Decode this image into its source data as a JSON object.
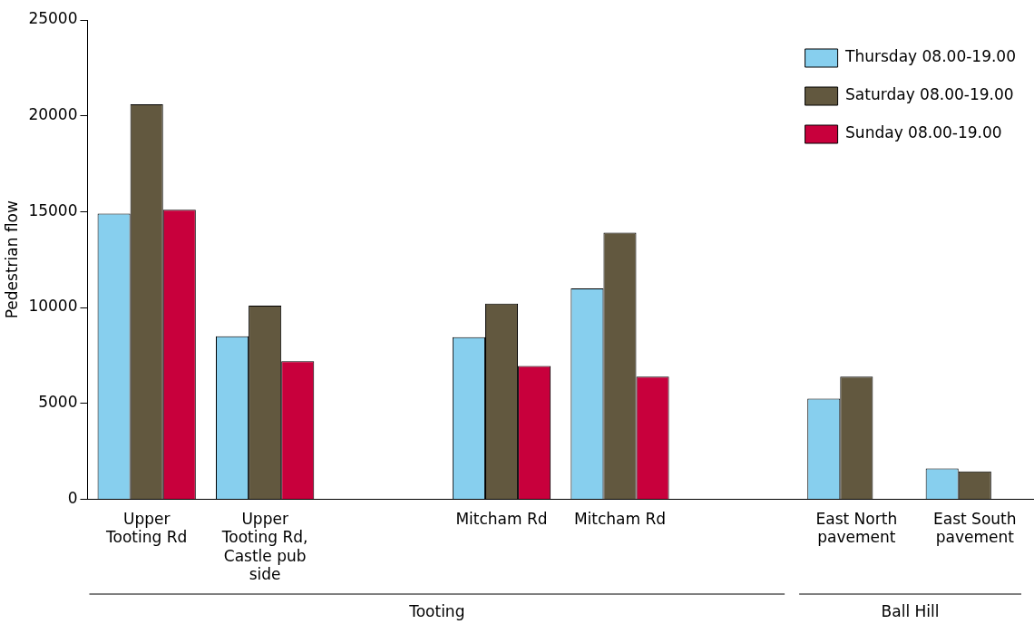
{
  "chart_data": {
    "type": "bar",
    "ylabel": "Pedestrian flow",
    "categories": [
      "Upper Tooting Rd",
      "Upper Tooting Rd, Castle pub side",
      null,
      "Mitcham Rd",
      "Mitcham Rd",
      null,
      "East North pavement",
      "East South pavement"
    ],
    "series": [
      {
        "name": "Thursday 08.00-19.00",
        "color": "#87cfee",
        "values": [
          14900,
          8500,
          null,
          8450,
          11000,
          null,
          5250,
          1600
        ]
      },
      {
        "name": "Saturday 08.00-19.00",
        "color": "#62583f",
        "values": [
          20600,
          10100,
          null,
          10200,
          13900,
          null,
          6400,
          1450
        ]
      },
      {
        "name": "Sunday 08.00-19.00",
        "color": "#c8003c",
        "values": [
          15100,
          7200,
          null,
          6950,
          6400,
          null,
          null,
          null
        ]
      }
    ],
    "ylim": [
      0,
      25000
    ],
    "yticks": [
      0,
      5000,
      10000,
      15000,
      20000,
      25000
    ],
    "legend": "top right",
    "grid": false,
    "annotations": [
      "Tooting",
      "Ball Hill"
    ]
  }
}
